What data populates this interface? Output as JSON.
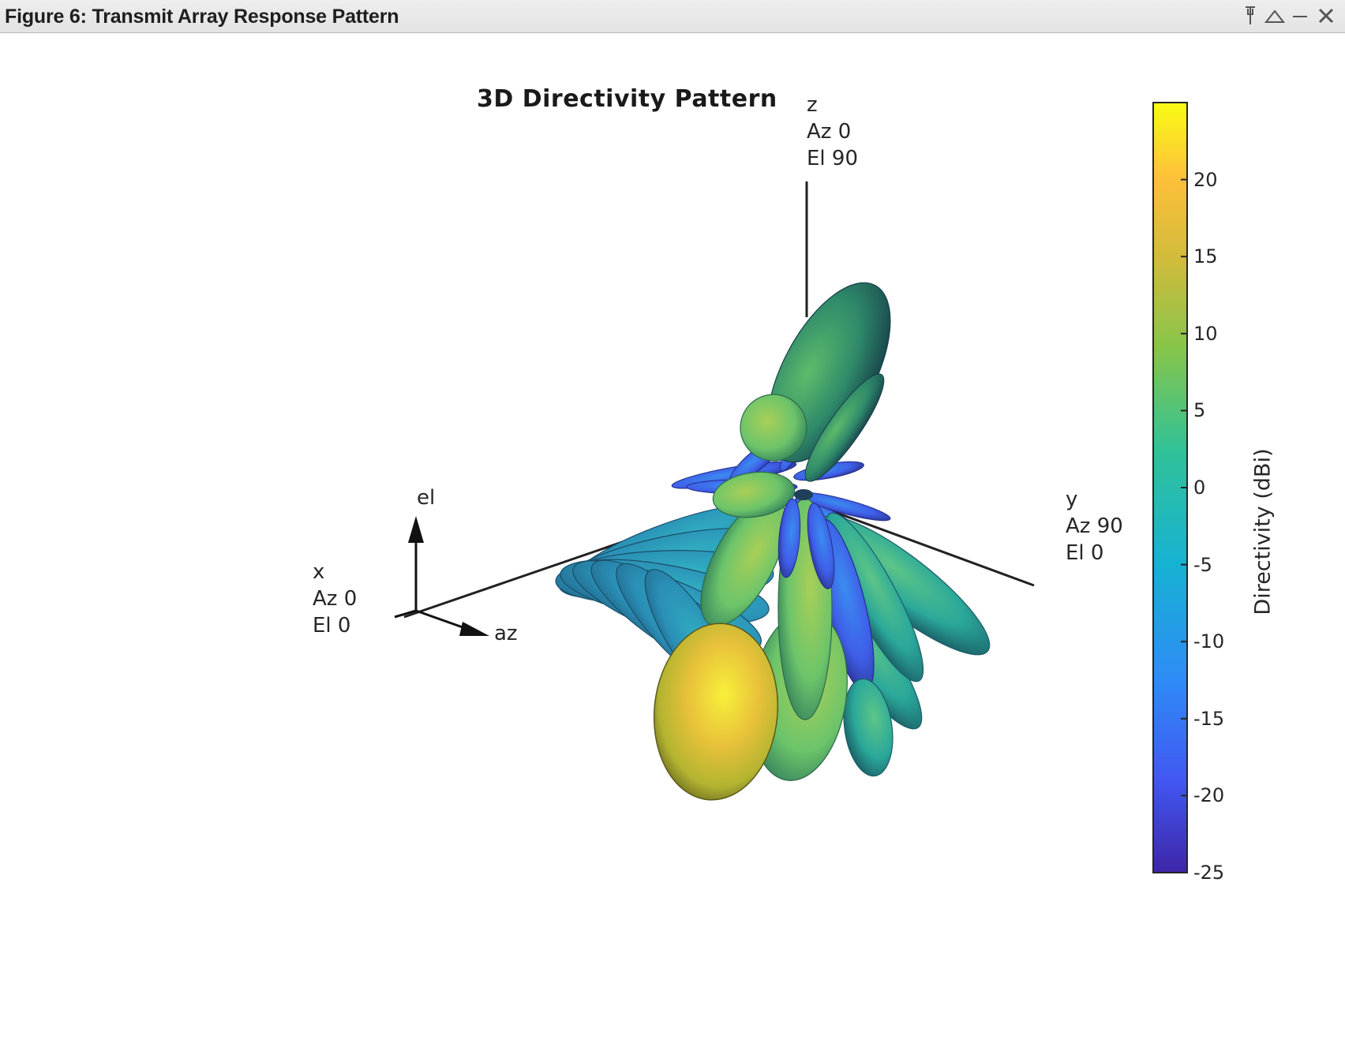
{
  "window": {
    "title": "Figure 6: Transmit Array Response Pattern",
    "controls": [
      "pin-icon",
      "undock-icon",
      "minimize-icon",
      "close-icon"
    ]
  },
  "chart_data": {
    "type": "3d-directivity-pattern",
    "title": "3D Directivity Pattern",
    "axes": {
      "z": [
        "z",
        "Az 0",
        "El 90"
      ],
      "y": [
        "y",
        "Az 90",
        "El 0"
      ],
      "x": [
        "x",
        "Az 0",
        "El 0"
      ]
    },
    "triad": {
      "el": "el",
      "az": "az"
    },
    "colorbar": {
      "label": "Directivity (dBi)",
      "ticks": [
        "20",
        "15",
        "10",
        "5",
        "0",
        "-5",
        "-10",
        "-15",
        "-20",
        "-25"
      ],
      "range": [
        -25,
        25
      ],
      "colormap": "parula",
      "colors": [
        "#3e26a8",
        "#4157f2",
        "#2f8bf6",
        "#16b2d3",
        "#31c296",
        "#86c54a",
        "#d3bb3b",
        "#fdc03a",
        "#f9fb15"
      ]
    }
  }
}
